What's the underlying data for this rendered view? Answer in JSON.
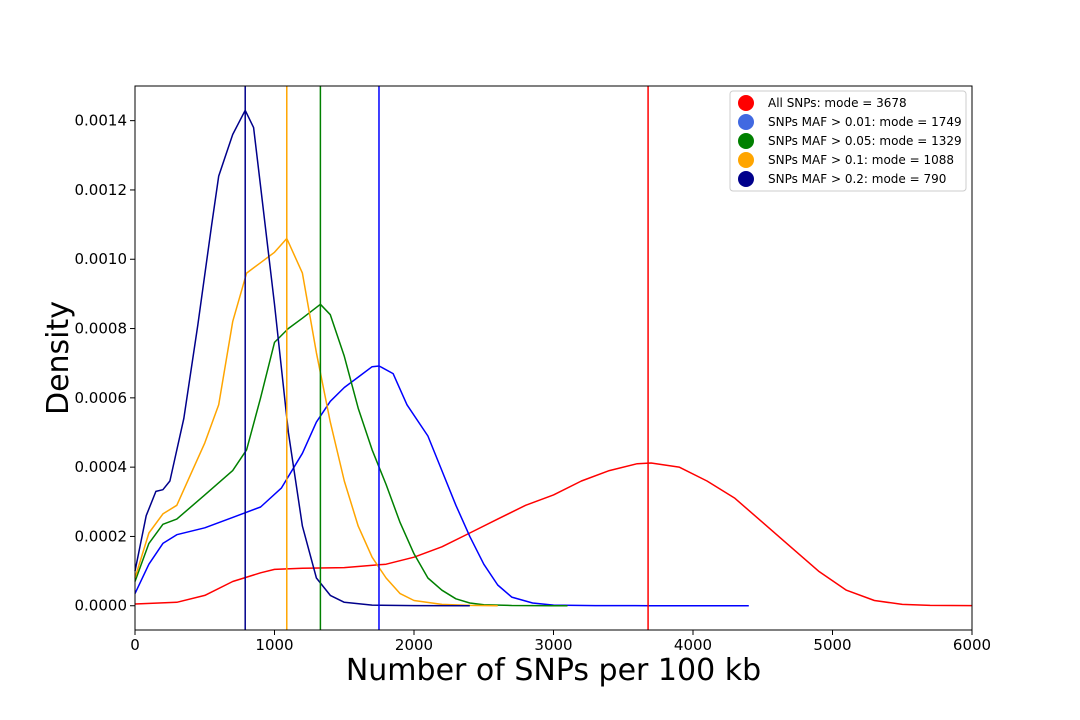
{
  "chart_data": {
    "type": "line",
    "title": "",
    "xlabel": "Number of SNPs per 100 kb",
    "ylabel": "Density",
    "xlim": [
      0,
      6000
    ],
    "ylim": [
      -7e-05,
      0.0015
    ],
    "x_ticks": [
      0,
      1000,
      2000,
      3000,
      4000,
      5000,
      6000
    ],
    "x_tick_labels": [
      "0",
      "1000",
      "2000",
      "3000",
      "4000",
      "5000",
      "6000"
    ],
    "y_ticks": [
      0,
      0.0002,
      0.0004,
      0.0006,
      0.0008,
      0.001,
      0.0012,
      0.0014
    ],
    "y_tick_labels": [
      "0.0000",
      "0.0002",
      "0.0004",
      "0.0006",
      "0.0008",
      "0.0010",
      "0.0012",
      "0.0014"
    ],
    "grid": false,
    "legend_position": "top-right",
    "series": [
      {
        "label": "All SNPs: mode = 3678",
        "color": "#ff0000",
        "marker_color": "#ff0000",
        "mode": 3678,
        "x": [
          0,
          300,
          500,
          700,
          900,
          1000,
          1200,
          1500,
          1800,
          2000,
          2200,
          2400,
          2600,
          2800,
          3000,
          3200,
          3400,
          3600,
          3700,
          3900,
          4100,
          4300,
          4500,
          4700,
          4900,
          5100,
          5300,
          5500,
          5700,
          6000
        ],
        "y": [
          5e-06,
          1e-05,
          3e-05,
          7e-05,
          9.5e-05,
          0.000105,
          0.000108,
          0.00011,
          0.00012,
          0.00014,
          0.00017,
          0.00021,
          0.00025,
          0.00029,
          0.00032,
          0.00036,
          0.00039,
          0.00041,
          0.000412,
          0.0004,
          0.00036,
          0.00031,
          0.00024,
          0.00017,
          0.0001,
          4.5e-05,
          1.5e-05,
          4e-06,
          1e-06,
          5e-07
        ]
      },
      {
        "label": "SNPs MAF > 0.01: mode = 1749",
        "color": "#0000ff",
        "marker_color": "#4169e1",
        "mode": 1749,
        "x": [
          0,
          100,
          200,
          300,
          500,
          700,
          900,
          1050,
          1200,
          1300,
          1400,
          1500,
          1600,
          1700,
          1750,
          1850,
          1950,
          2100,
          2200,
          2300,
          2400,
          2500,
          2600,
          2700,
          2850,
          3000,
          3300,
          3700,
          4100,
          4400
        ],
        "y": [
          3.5e-05,
          0.00012,
          0.00018,
          0.000205,
          0.000225,
          0.000255,
          0.000285,
          0.00034,
          0.00044,
          0.00053,
          0.00059,
          0.00063,
          0.00066,
          0.00069,
          0.000692,
          0.00067,
          0.00058,
          0.00049,
          0.00039,
          0.00029,
          0.0002,
          0.00012,
          6e-05,
          2.5e-05,
          8e-06,
          2e-06,
          5e-07,
          0,
          0,
          0
        ]
      },
      {
        "label": "SNPs MAF > 0.05: mode = 1329",
        "color": "#008000",
        "marker_color": "#008000",
        "mode": 1329,
        "x": [
          0,
          100,
          200,
          300,
          500,
          700,
          800,
          900,
          1000,
          1100,
          1200,
          1329,
          1400,
          1500,
          1600,
          1700,
          1800,
          1900,
          2000,
          2100,
          2200,
          2300,
          2400,
          2500,
          2700,
          3000,
          3100
        ],
        "y": [
          7e-05,
          0.00018,
          0.000235,
          0.00025,
          0.00032,
          0.00039,
          0.00045,
          0.0006,
          0.00076,
          0.0008,
          0.00083,
          0.00087,
          0.00084,
          0.00072,
          0.00057,
          0.00045,
          0.00035,
          0.00024,
          0.00015,
          8e-05,
          4.5e-05,
          2e-05,
          8e-06,
          3e-06,
          8e-07,
          0,
          0
        ]
      },
      {
        "label": "SNPs MAF > 0.1: mode = 1088",
        "color": "#ffa500",
        "marker_color": "#ffa500",
        "mode": 1088,
        "x": [
          0,
          100,
          200,
          300,
          400,
          500,
          600,
          700,
          800,
          900,
          1000,
          1088,
          1200,
          1300,
          1400,
          1500,
          1600,
          1700,
          1800,
          1900,
          2000,
          2200,
          2400,
          2600
        ],
        "y": [
          8e-05,
          0.00021,
          0.000265,
          0.00029,
          0.00038,
          0.00047,
          0.00058,
          0.00082,
          0.00096,
          0.00099,
          0.00102,
          0.00106,
          0.00096,
          0.00073,
          0.00053,
          0.00036,
          0.00023,
          0.00014,
          8e-05,
          3.5e-05,
          1.5e-05,
          4e-06,
          1e-06,
          0
        ]
      },
      {
        "label": "SNPs MAF > 0.2: mode = 790",
        "color": "#00008b",
        "marker_color": "#00008b",
        "mode": 790,
        "x": [
          0,
          80,
          150,
          200,
          250,
          350,
          450,
          550,
          600,
          650,
          700,
          790,
          850,
          900,
          1000,
          1100,
          1200,
          1300,
          1400,
          1500,
          1700,
          2000,
          2400
        ],
        "y": [
          0.0001,
          0.00026,
          0.00033,
          0.000335,
          0.00036,
          0.00054,
          0.00081,
          0.0011,
          0.00124,
          0.0013,
          0.00136,
          0.00143,
          0.00138,
          0.00121,
          0.00087,
          0.0005,
          0.00023,
          8e-05,
          3e-05,
          1e-05,
          2e-06,
          5e-07,
          0
        ]
      }
    ]
  }
}
